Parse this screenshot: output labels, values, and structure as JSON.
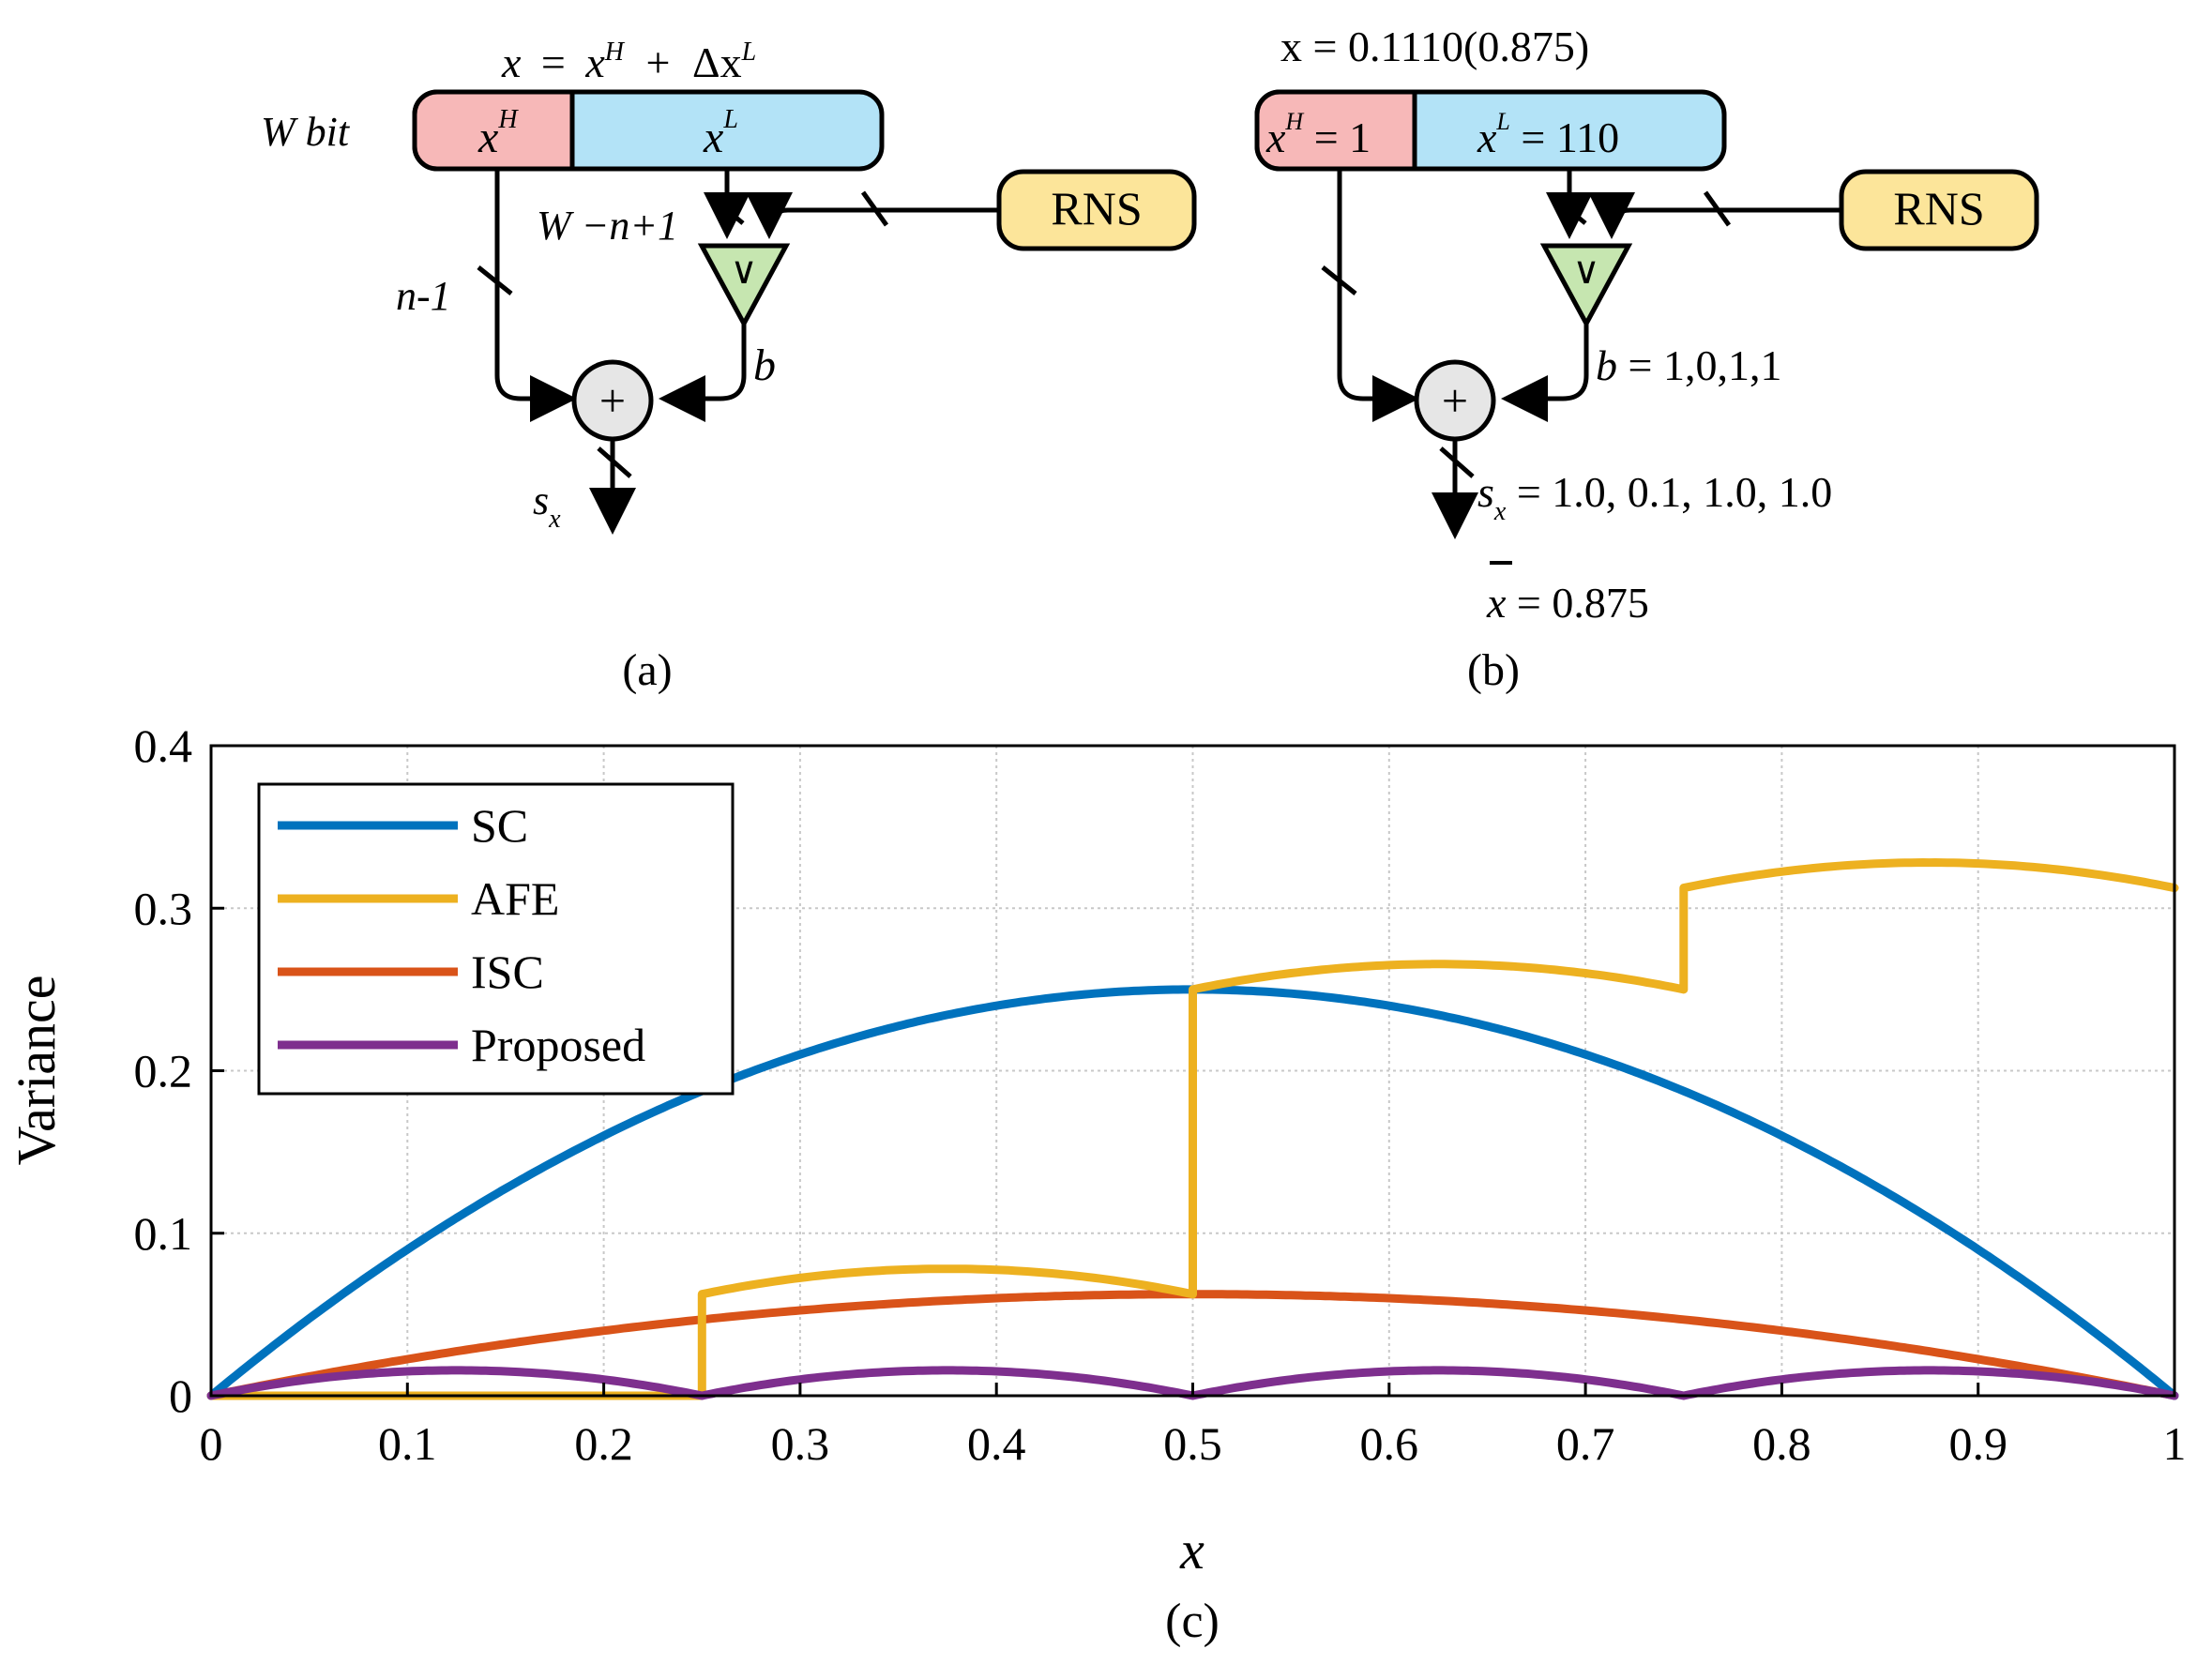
{
  "panel_a": {
    "caption": "(a)",
    "eq_x": "x",
    "eq_eq": "=",
    "eq_xH": "x",
    "eq_H": "H",
    "eq_plus": "+",
    "eq_dx": "Δx",
    "eq_L": "L",
    "w_bit": "W bit",
    "reg_high": "x",
    "reg_high_sup": "H",
    "reg_low": "x",
    "reg_low_sup": "L",
    "width_lsb": "W −n+1",
    "width_msb": "n-1",
    "rns_label": "RNS",
    "comparator_symbol": "∨",
    "adder_symbol": "+",
    "b_label": "b",
    "sx_label": "s",
    "sx_sub": "x"
  },
  "panel_b": {
    "caption": "(b)",
    "eq_value": "x = 0.1110(0.875)",
    "reg_high": "x",
    "reg_high_sup": "H",
    "reg_high_val": " = 1",
    "reg_low": "x",
    "reg_low_sup": "L",
    "reg_low_val": " = 110",
    "rns_label": "RNS",
    "comparator_symbol": "∨",
    "adder_symbol": "+",
    "b_label": "b",
    "b_values": " = 1,0,1,1",
    "sx_label": "s",
    "sx_sub": "x",
    "sx_values": " = 1.0, 0.1, 1.0, 1.0",
    "xbar_label": "x",
    "xbar_value": " = 0.875"
  },
  "colors": {
    "SC": "#0072BD",
    "AFE": "#EDB120",
    "ISC": "#D95319",
    "Proposed": "#7E2F8E",
    "reg_high_fill": "#F7B8B8",
    "reg_low_fill": "#B3E3F7",
    "rns_fill": "#FCE59A",
    "comparator_fill": "#C6E6B0",
    "adder_fill": "#E6E6E6"
  },
  "chart_data": {
    "type": "line",
    "caption": "(c)",
    "xlabel": "x",
    "ylabel": "Variance",
    "xlim": [
      0,
      1
    ],
    "ylim": [
      0,
      0.4
    ],
    "grid": true,
    "legend_position": "top-left",
    "xticks": [
      0,
      0.1,
      0.2,
      0.3,
      0.4,
      0.5,
      0.6,
      0.7,
      0.8,
      0.9,
      1
    ],
    "xtick_labels": [
      "0",
      "0.1",
      "0.2",
      "0.3",
      "0.4",
      "0.5",
      "0.6",
      "0.7",
      "0.8",
      "0.9",
      "1"
    ],
    "yticks": [
      0,
      0.1,
      0.2,
      0.3,
      0.4
    ],
    "ytick_labels": [
      "0",
      "0.1",
      "0.2",
      "0.3",
      "0.4"
    ],
    "series": [
      {
        "name": "SC",
        "x": [
          0,
          0.05,
          0.1,
          0.15,
          0.2,
          0.25,
          0.3,
          0.35,
          0.4,
          0.45,
          0.5,
          0.55,
          0.6,
          0.65,
          0.7,
          0.75,
          0.8,
          0.85,
          0.9,
          0.95,
          1
        ],
        "y": [
          0,
          0.0475,
          0.09,
          0.1275,
          0.16,
          0.1875,
          0.21,
          0.2275,
          0.24,
          0.2475,
          0.25,
          0.2475,
          0.24,
          0.2275,
          0.21,
          0.1875,
          0.16,
          0.1275,
          0.09,
          0.0475,
          0
        ]
      },
      {
        "name": "AFE",
        "x": [
          0,
          0.25,
          0.25,
          0.3125,
          0.375,
          0.4375,
          0.5,
          0.5,
          0.5625,
          0.625,
          0.6875,
          0.75,
          0.75,
          0.8125,
          0.875,
          0.9375,
          1
        ],
        "y": [
          0,
          0,
          0.0625,
          0.0742,
          0.0781,
          0.0742,
          0.0625,
          0.25,
          0.2617,
          0.2656,
          0.2617,
          0.25,
          0.3125,
          0.3242,
          0.3281,
          0.3242,
          0.3125
        ]
      },
      {
        "name": "ISC",
        "x": [
          0,
          0.1,
          0.2,
          0.3,
          0.4,
          0.5,
          0.6,
          0.7,
          0.8,
          0.9,
          1
        ],
        "y": [
          0,
          0.0225,
          0.04,
          0.0525,
          0.06,
          0.0625,
          0.06,
          0.0525,
          0.04,
          0.0225,
          0
        ]
      },
      {
        "name": "Proposed",
        "x": [
          0,
          0.0625,
          0.125,
          0.1875,
          0.25,
          0.3125,
          0.375,
          0.4375,
          0.5,
          0.5625,
          0.625,
          0.6875,
          0.75,
          0.8125,
          0.875,
          0.9375,
          1
        ],
        "y": [
          0,
          0.0117,
          0.0156,
          0.0117,
          0,
          0.0117,
          0.0156,
          0.0117,
          0,
          0.0117,
          0.0156,
          0.0117,
          0,
          0.0117,
          0.0156,
          0.0117,
          0
        ]
      }
    ]
  }
}
